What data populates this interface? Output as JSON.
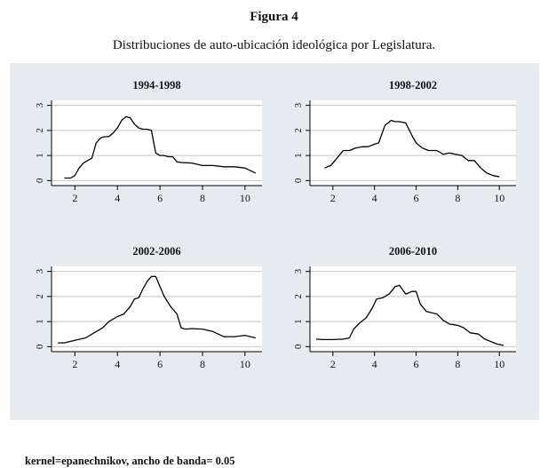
{
  "figure": {
    "label": "Figura 4",
    "caption": "Distribuciones de auto-ubicación ideológica por Legislatura.",
    "note": "kernel=epanechnikov, ancho de banda= 0.05"
  },
  "colors": {
    "background": "#e6ebef",
    "panel": "#ffffff",
    "line": "#000000",
    "grid": "#c4c4c4"
  },
  "chart_data": [
    {
      "type": "line",
      "title": "1994-1998",
      "xlabel": "",
      "ylabel": "",
      "xlim": [
        0.9,
        10.8
      ],
      "ylim": [
        -0.2,
        3.2
      ],
      "xticks": [
        2,
        4,
        6,
        8,
        10
      ],
      "yticks": [
        0,
        1,
        2,
        3
      ],
      "grid": true,
      "x": [
        1.5,
        1.8,
        2.0,
        2.2,
        2.4,
        2.6,
        2.8,
        3.0,
        3.2,
        3.4,
        3.6,
        3.8,
        4.0,
        4.2,
        4.4,
        4.6,
        4.8,
        5.0,
        5.2,
        5.4,
        5.6,
        5.8,
        6.0,
        6.2,
        6.4,
        6.6,
        6.8,
        7.0,
        7.5,
        8.0,
        8.5,
        9.0,
        9.5,
        10.0,
        10.5
      ],
      "y": [
        0.1,
        0.1,
        0.2,
        0.5,
        0.7,
        0.8,
        0.9,
        1.5,
        1.7,
        1.75,
        1.75,
        1.9,
        2.1,
        2.4,
        2.55,
        2.5,
        2.25,
        2.1,
        2.05,
        2.05,
        2.0,
        1.1,
        1.0,
        1.0,
        0.95,
        0.95,
        0.75,
        0.72,
        0.7,
        0.6,
        0.6,
        0.55,
        0.55,
        0.5,
        0.3
      ]
    },
    {
      "type": "line",
      "title": "1998-2002",
      "xlabel": "",
      "ylabel": "",
      "xlim": [
        0.9,
        10.8
      ],
      "ylim": [
        -0.2,
        3.2
      ],
      "xticks": [
        2,
        4,
        6,
        8,
        10
      ],
      "yticks": [
        0,
        1,
        2,
        3
      ],
      "grid": true,
      "x": [
        1.6,
        1.9,
        2.2,
        2.5,
        2.8,
        3.1,
        3.4,
        3.7,
        4.0,
        4.2,
        4.5,
        4.8,
        5.0,
        5.2,
        5.5,
        5.8,
        6.0,
        6.3,
        6.6,
        7.0,
        7.3,
        7.6,
        7.9,
        8.2,
        8.5,
        8.8,
        9.1,
        9.4,
        9.7,
        10.0
      ],
      "y": [
        0.5,
        0.6,
        0.9,
        1.2,
        1.2,
        1.3,
        1.35,
        1.35,
        1.45,
        1.5,
        2.2,
        2.4,
        2.35,
        2.35,
        2.3,
        1.8,
        1.5,
        1.3,
        1.2,
        1.2,
        1.05,
        1.1,
        1.05,
        1.0,
        0.8,
        0.8,
        0.5,
        0.3,
        0.2,
        0.15
      ]
    },
    {
      "type": "line",
      "title": "2002-2006",
      "xlabel": "",
      "ylabel": "",
      "xlim": [
        0.9,
        10.8
      ],
      "ylim": [
        -0.2,
        3.2
      ],
      "xticks": [
        2,
        4,
        6,
        8,
        10
      ],
      "yticks": [
        0,
        1,
        2,
        3
      ],
      "grid": true,
      "x": [
        1.2,
        1.5,
        2.0,
        2.5,
        3.0,
        3.3,
        3.6,
        4.0,
        4.3,
        4.6,
        4.8,
        5.0,
        5.2,
        5.4,
        5.6,
        5.8,
        6.0,
        6.2,
        6.5,
        6.8,
        7.0,
        7.2,
        7.5,
        8.0,
        8.5,
        9.0,
        9.5,
        10.0,
        10.5
      ],
      "y": [
        0.15,
        0.15,
        0.25,
        0.35,
        0.6,
        0.75,
        1.0,
        1.2,
        1.3,
        1.6,
        1.9,
        1.95,
        2.3,
        2.6,
        2.8,
        2.8,
        2.4,
        2.0,
        1.6,
        1.3,
        0.75,
        0.7,
        0.72,
        0.7,
        0.6,
        0.4,
        0.4,
        0.45,
        0.35
      ]
    },
    {
      "type": "line",
      "title": "2006-2010",
      "xlabel": "",
      "ylabel": "",
      "xlim": [
        0.9,
        10.8
      ],
      "ylim": [
        -0.2,
        3.2
      ],
      "xticks": [
        2,
        4,
        6,
        8,
        10
      ],
      "yticks": [
        0,
        1,
        2,
        3
      ],
      "grid": true,
      "x": [
        1.2,
        1.5,
        2.0,
        2.5,
        2.8,
        3.0,
        3.3,
        3.6,
        3.9,
        4.1,
        4.4,
        4.7,
        5.0,
        5.2,
        5.5,
        5.8,
        6.0,
        6.2,
        6.5,
        7.0,
        7.3,
        7.6,
        8.0,
        8.3,
        8.6,
        9.0,
        9.3,
        9.6,
        9.9,
        10.2
      ],
      "y": [
        0.3,
        0.28,
        0.28,
        0.3,
        0.35,
        0.7,
        0.95,
        1.15,
        1.55,
        1.9,
        1.95,
        2.1,
        2.4,
        2.45,
        2.1,
        2.2,
        2.2,
        1.7,
        1.4,
        1.3,
        1.05,
        0.9,
        0.85,
        0.75,
        0.55,
        0.5,
        0.3,
        0.2,
        0.1,
        0.05
      ]
    }
  ]
}
